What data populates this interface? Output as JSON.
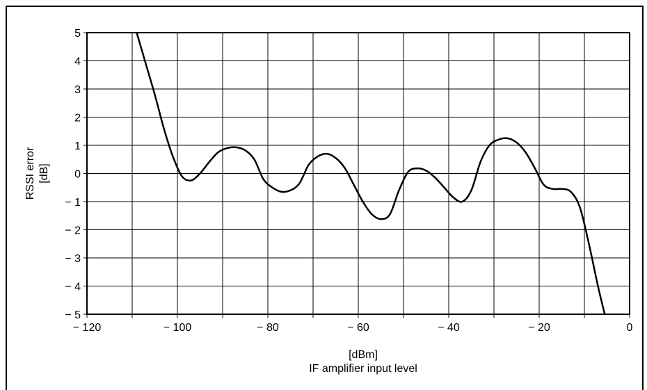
{
  "chart_data": {
    "type": "line",
    "xlabel": "[dBm]",
    "xlabel_sub": "IF amplifier input level",
    "ylabel": "RSSI error",
    "ylabel_unit": "[dB]",
    "xlim": [
      -120,
      0
    ],
    "ylim": [
      -5,
      5
    ],
    "x_ticks": [
      -120,
      -110,
      -100,
      -90,
      -80,
      -70,
      -60,
      -50,
      -40,
      -30,
      -20,
      -10,
      0
    ],
    "x_tick_labels": [
      "− 120",
      "− 100",
      "− 80",
      "− 60",
      "− 40",
      "− 20",
      "0"
    ],
    "x_tick_label_values": [
      -120,
      -100,
      -80,
      -60,
      -40,
      -20,
      0
    ],
    "y_ticks": [
      5,
      4,
      3,
      2,
      1,
      0,
      -1,
      -2,
      -3,
      -4,
      -5
    ],
    "y_tick_labels": [
      "5",
      "4",
      "3",
      "2",
      "1",
      "0",
      "− 1",
      "− 2",
      "− 3",
      "− 4",
      "− 5"
    ],
    "grid": true,
    "series": [
      {
        "color": "#000000",
        "x": [
          -109,
          -107,
          -105,
          -103,
          -101,
          -99,
          -97,
          -95,
          -93,
          -91,
          -89,
          -87,
          -85,
          -83,
          -81,
          -79,
          -77,
          -75,
          -73,
          -71,
          -69,
          -67,
          -65,
          -63,
          -61,
          -59,
          -57,
          -55,
          -53,
          -51,
          -49,
          -47,
          -45,
          -43,
          -41,
          -39,
          -37,
          -35,
          -33,
          -31,
          -29,
          -27,
          -25,
          -23,
          -21,
          -19,
          -17,
          -15,
          -13,
          -11,
          -9,
          -7,
          -5.5
        ],
        "y": [
          5.0,
          3.9,
          2.8,
          1.6,
          0.6,
          -0.1,
          -0.25,
          0.0,
          0.4,
          0.75,
          0.9,
          0.93,
          0.82,
          0.5,
          -0.2,
          -0.5,
          -0.65,
          -0.6,
          -0.35,
          0.3,
          0.6,
          0.7,
          0.55,
          0.2,
          -0.4,
          -1.0,
          -1.45,
          -1.62,
          -1.45,
          -0.6,
          0.05,
          0.18,
          0.1,
          -0.15,
          -0.5,
          -0.85,
          -1.0,
          -0.6,
          0.4,
          1.0,
          1.2,
          1.25,
          1.1,
          0.75,
          0.2,
          -0.4,
          -0.55,
          -0.55,
          -0.65,
          -1.2,
          -2.5,
          -4.0,
          -5.0
        ]
      }
    ]
  }
}
